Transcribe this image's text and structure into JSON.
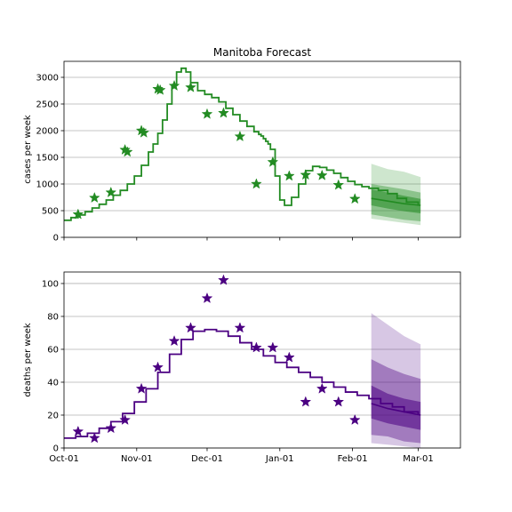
{
  "chart_data": [
    {
      "type": "line",
      "title": "Manitoba Forecast",
      "xlabel": "",
      "ylabel": "cases per week",
      "xlim": [
        "2020-10-01",
        "2021-03-19"
      ],
      "ylim": [
        0,
        3300
      ],
      "yticks": [
        0,
        500,
        1000,
        1500,
        2000,
        2500,
        3000
      ],
      "xticks": [
        "2020-10-01",
        "2020-11-01",
        "2020-12-01",
        "2021-01-01",
        "2021-02-01",
        "2021-03-01"
      ],
      "xtick_labels": [
        "",
        "",
        "",
        "",
        "",
        ""
      ],
      "grid": "horizontal",
      "color": "#228B22",
      "model_line": {
        "x": [
          "2020-10-01",
          "2020-10-04",
          "2020-10-07",
          "2020-10-10",
          "2020-10-13",
          "2020-10-16",
          "2020-10-19",
          "2020-10-22",
          "2020-10-25",
          "2020-10-28",
          "2020-10-31",
          "2020-11-03",
          "2020-11-06",
          "2020-11-08",
          "2020-11-10",
          "2020-11-12",
          "2020-11-14",
          "2020-11-16",
          "2020-11-18",
          "2020-11-20",
          "2020-11-22",
          "2020-11-24",
          "2020-11-27",
          "2020-11-30",
          "2020-12-03",
          "2020-12-06",
          "2020-12-09",
          "2020-12-12",
          "2020-12-15",
          "2020-12-18",
          "2020-12-21",
          "2020-12-23",
          "2020-12-24",
          "2020-12-25",
          "2020-12-26",
          "2020-12-27",
          "2020-12-28",
          "2020-12-30",
          "2021-01-01",
          "2021-01-03",
          "2021-01-06",
          "2021-01-09",
          "2021-01-12",
          "2021-01-15",
          "2021-01-18",
          "2021-01-21",
          "2021-01-24",
          "2021-01-27",
          "2021-01-30",
          "2021-02-02",
          "2021-02-05",
          "2021-02-08",
          "2021-02-12",
          "2021-02-16",
          "2021-02-20",
          "2021-02-24",
          "2021-03-01"
        ],
        "y": [
          320,
          370,
          420,
          480,
          550,
          620,
          700,
          790,
          880,
          1000,
          1150,
          1350,
          1600,
          1750,
          1950,
          2200,
          2500,
          2850,
          3100,
          3170,
          3100,
          2900,
          2750,
          2680,
          2620,
          2540,
          2420,
          2300,
          2180,
          2080,
          1980,
          1930,
          1900,
          1850,
          1800,
          1750,
          1650,
          1150,
          700,
          600,
          750,
          1000,
          1250,
          1330,
          1310,
          1260,
          1200,
          1120,
          1050,
          990,
          950,
          920,
          880,
          820,
          730,
          660,
          590
        ]
      },
      "observed": {
        "x": [
          "2020-10-07",
          "2020-10-14",
          "2020-10-21",
          "2020-10-27",
          "2020-10-28",
          "2020-11-03",
          "2020-11-04",
          "2020-11-10",
          "2020-11-11",
          "2020-11-17",
          "2020-11-24",
          "2020-12-01",
          "2020-12-08",
          "2020-12-15",
          "2020-12-22",
          "2020-12-29",
          "2021-01-05",
          "2021-01-12",
          "2021-01-19",
          "2021-01-26",
          "2021-02-02"
        ],
        "y": [
          430,
          740,
          840,
          1640,
          1600,
          2000,
          1960,
          2780,
          2760,
          2840,
          2810,
          2310,
          2330,
          1890,
          1000,
          1410,
          1150,
          1170,
          1160,
          980,
          720
        ]
      },
      "forecast_bands": {
        "x": [
          "2021-02-09",
          "2021-02-16",
          "2021-02-23",
          "2021-03-02"
        ],
        "median": [
          730,
          680,
          630,
          600
        ],
        "inner_lo": [
          600,
          540,
          490,
          450
        ],
        "inner_hi": [
          900,
          840,
          780,
          720
        ],
        "mid_lo": [
          430,
          380,
          330,
          300
        ],
        "mid_hi": [
          1000,
          950,
          900,
          840
        ],
        "outer_lo": [
          350,
          310,
          270,
          230
        ],
        "outer_hi": [
          1380,
          1280,
          1230,
          1130
        ]
      }
    },
    {
      "type": "line",
      "title": "",
      "xlabel": "",
      "ylabel": "deaths per week",
      "xlim": [
        "2020-10-01",
        "2021-03-19"
      ],
      "ylim": [
        0,
        107
      ],
      "yticks": [
        0,
        20,
        40,
        60,
        80,
        100
      ],
      "xticks": [
        "2020-10-01",
        "2020-11-01",
        "2020-12-01",
        "2021-01-01",
        "2021-02-01",
        "2021-03-01"
      ],
      "xtick_labels": [
        "Oct-01",
        "Nov-01",
        "Dec-01",
        "Jan-01",
        "Feb-01",
        "Mar-01"
      ],
      "grid": "horizontal",
      "color": "#4B0082",
      "model_line": {
        "x": [
          "2020-10-01",
          "2020-10-06",
          "2020-10-11",
          "2020-10-16",
          "2020-10-21",
          "2020-10-26",
          "2020-10-31",
          "2020-11-05",
          "2020-11-10",
          "2020-11-15",
          "2020-11-20",
          "2020-11-25",
          "2020-11-30",
          "2020-12-05",
          "2020-12-10",
          "2020-12-15",
          "2020-12-20",
          "2020-12-25",
          "2020-12-30",
          "2021-01-04",
          "2021-01-09",
          "2021-01-14",
          "2021-01-19",
          "2021-01-24",
          "2021-01-29",
          "2021-02-03",
          "2021-02-08",
          "2021-02-13",
          "2021-02-18",
          "2021-02-23",
          "2021-03-01"
        ],
        "y": [
          6,
          7,
          9,
          12,
          16,
          21,
          28,
          36,
          46,
          57,
          66,
          71,
          72,
          71,
          68,
          64,
          60,
          56,
          52,
          49,
          46,
          43,
          40,
          37,
          34,
          32,
          30,
          27,
          25,
          22,
          20
        ]
      },
      "observed": {
        "x": [
          "2020-10-07",
          "2020-10-14",
          "2020-10-21",
          "2020-10-27",
          "2020-11-03",
          "2020-11-10",
          "2020-11-17",
          "2020-11-24",
          "2020-12-01",
          "2020-12-08",
          "2020-12-15",
          "2020-12-22",
          "2020-12-29",
          "2021-01-05",
          "2021-01-12",
          "2021-01-19",
          "2021-01-26",
          "2021-02-02"
        ],
        "y": [
          10,
          6,
          12,
          17,
          36,
          49,
          65,
          73,
          91,
          102,
          73,
          61,
          61,
          55,
          28,
          36,
          28,
          17
        ]
      },
      "forecast_bands": {
        "x": [
          "2021-02-09",
          "2021-02-16",
          "2021-02-23",
          "2021-03-02"
        ],
        "median": [
          27,
          24,
          22,
          20
        ],
        "inner_lo": [
          18,
          15,
          13,
          11
        ],
        "inner_hi": [
          38,
          33,
          30,
          28
        ],
        "mid_lo": [
          8,
          7,
          4,
          3
        ],
        "mid_hi": [
          54,
          49,
          45,
          42
        ],
        "outer_lo": [
          3,
          2,
          1,
          0
        ],
        "outer_hi": [
          82,
          75,
          68,
          63
        ]
      }
    }
  ]
}
